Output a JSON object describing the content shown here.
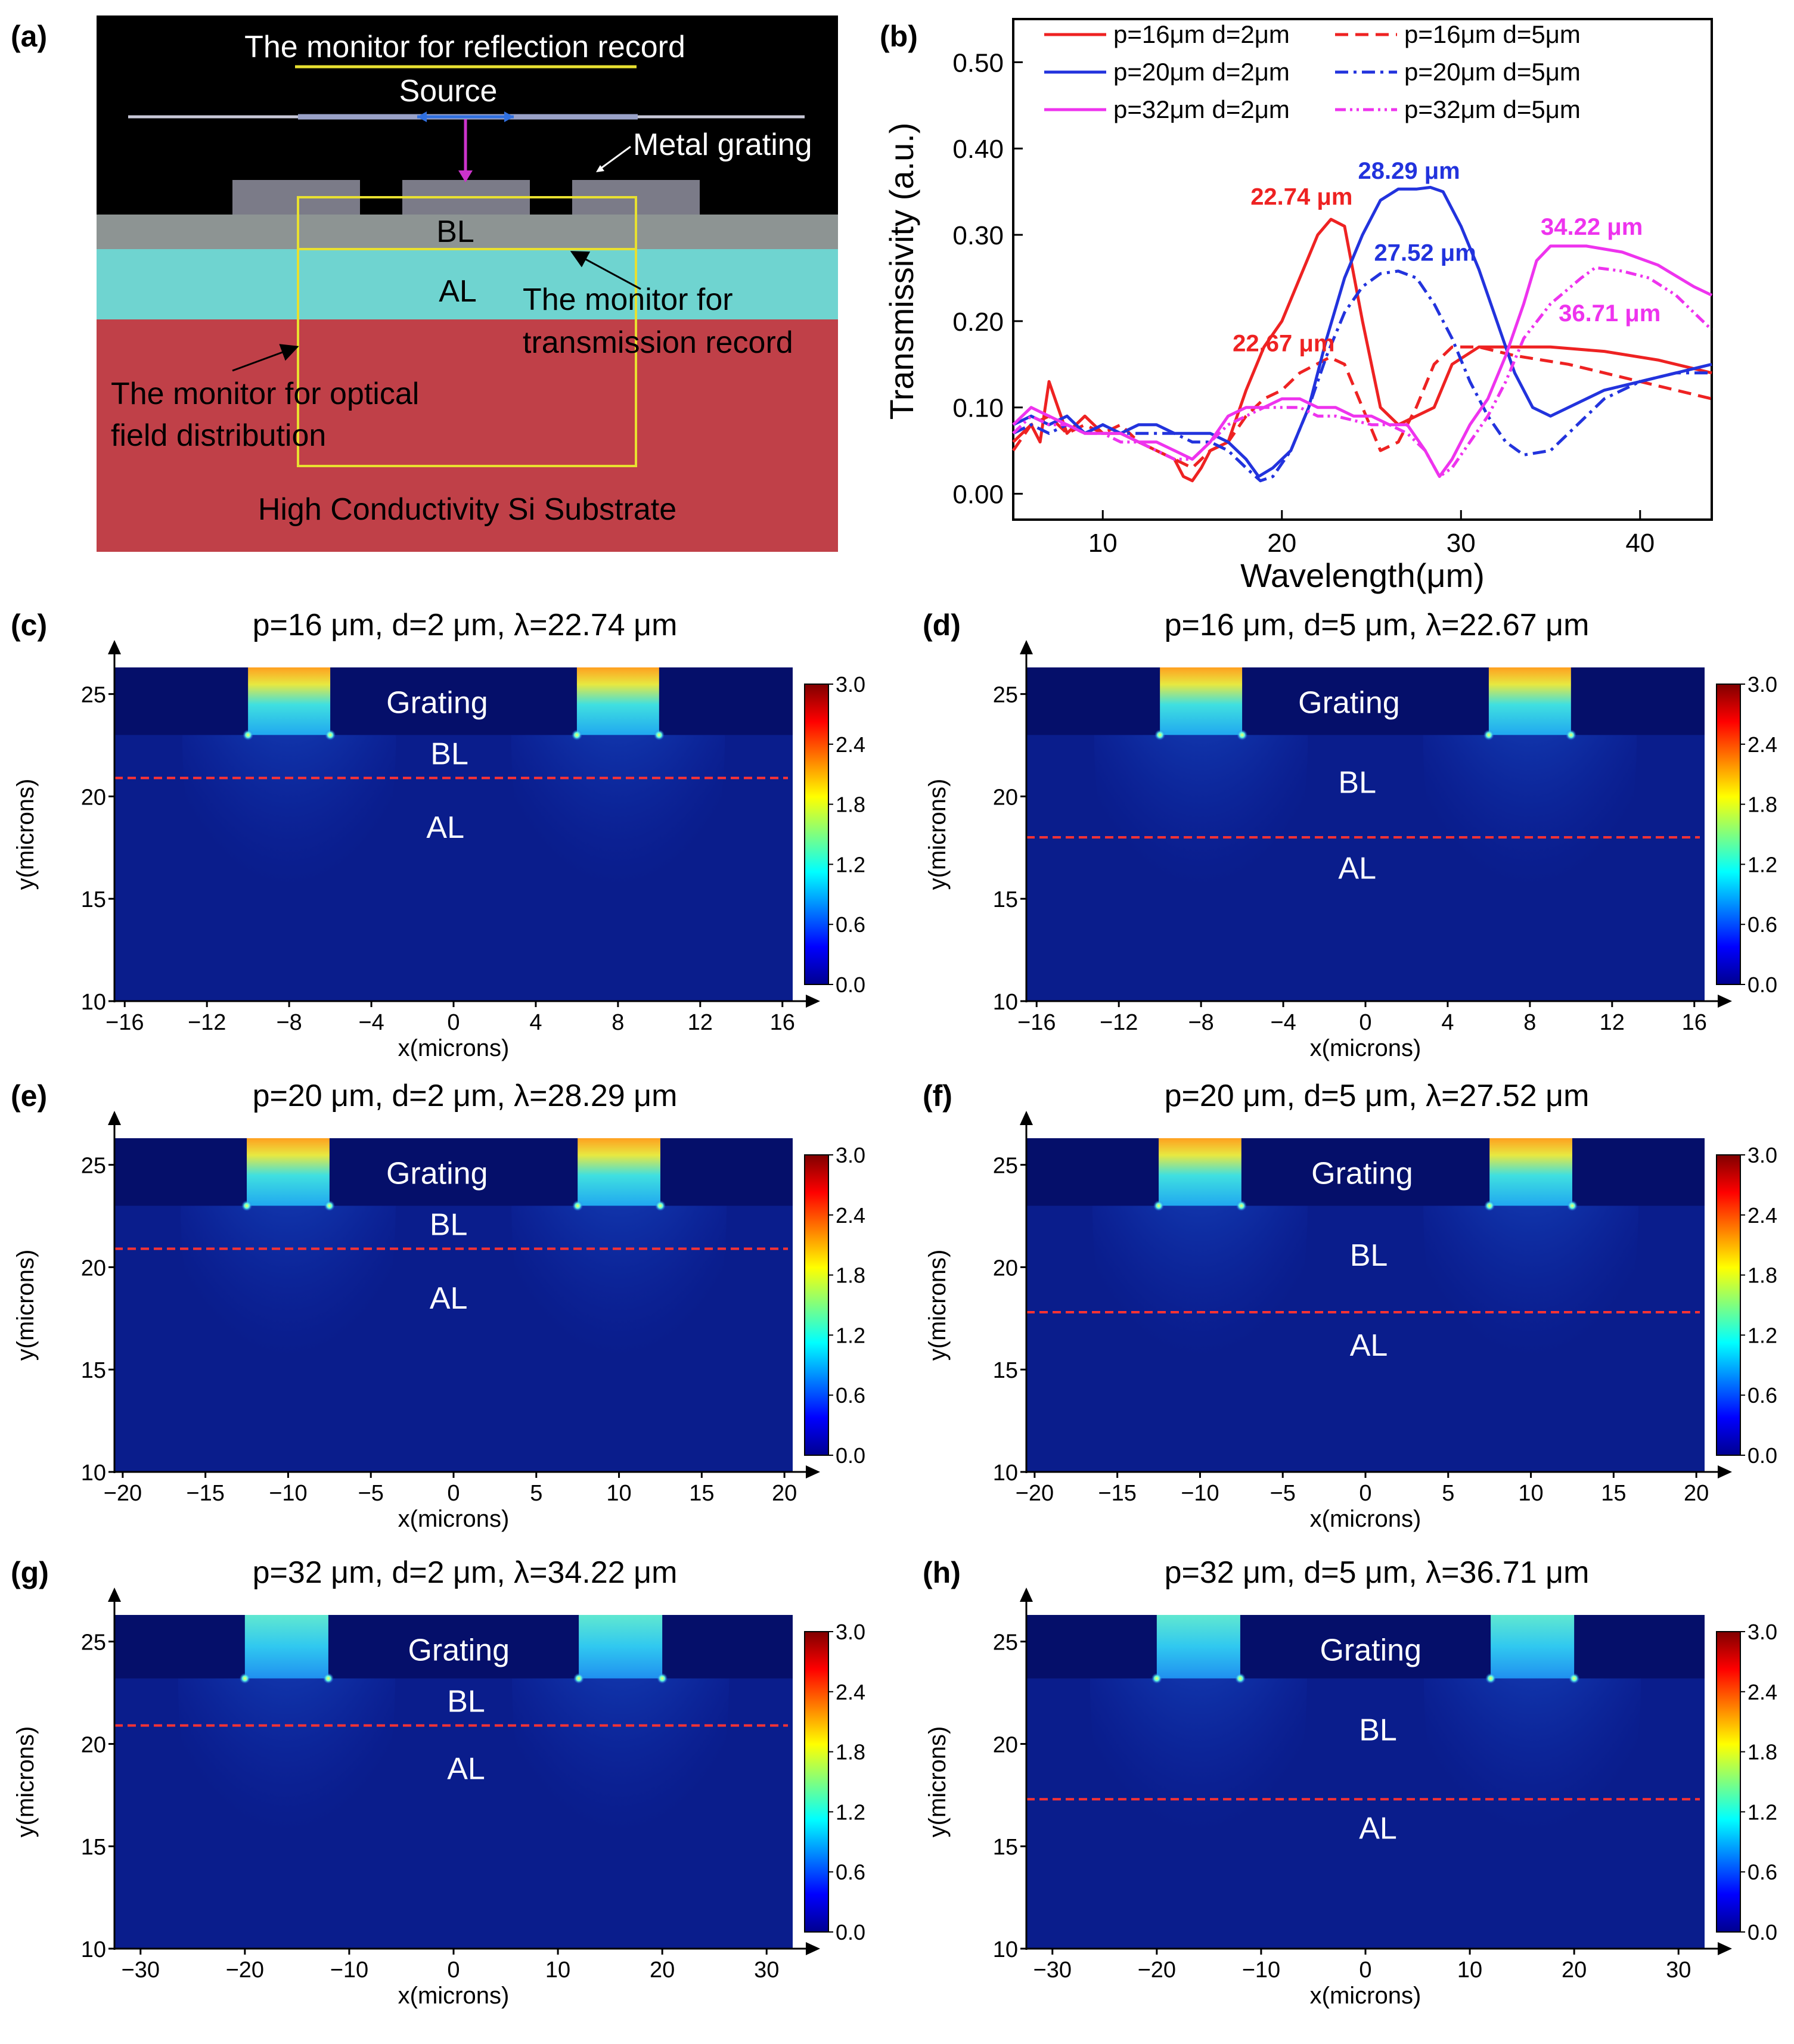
{
  "colors": {
    "red": "#ee2222",
    "blue": "#2233dd",
    "magenta": "#ee33ee",
    "black": "#000000",
    "gray_layer": "#8d9493",
    "teal_layer": "#6fd4d0",
    "substrate": "#c04048",
    "grating_block": "#7b7b88",
    "monitor_yellow": "#e8e030",
    "dash_red": "#ff3333",
    "field_dark": "#0a1d8c"
  },
  "panel_a": {
    "label": "(a)",
    "reflection_monitor": "The monitor for reflection record",
    "source": "Source",
    "metal_grating": "Metal grating",
    "bl": "BL",
    "al": "AL",
    "transmission_monitor_line1": "The monitor for",
    "transmission_monitor_line2": "transmission record",
    "optical_monitor_line1": "The monitor for optical",
    "optical_monitor_line2": "field distribution",
    "substrate": "High Conductivity Si Substrate"
  },
  "chart_data": [
    {
      "type": "line",
      "panel": "(b)",
      "title": "",
      "xlabel": "Wavelength(μm)",
      "ylabel": "Transmissivity (a.u.)",
      "xlim": [
        5,
        44
      ],
      "ylim": [
        -0.03,
        0.55
      ],
      "x_ticks": [
        "10",
        "20",
        "30",
        "40"
      ],
      "x_tick_values": [
        10,
        20,
        30,
        40
      ],
      "y_ticks": [
        "0.00",
        "0.10",
        "0.20",
        "0.30",
        "0.40",
        "0.50"
      ],
      "y_tick_values": [
        0,
        0.1,
        0.2,
        0.3,
        0.4,
        0.5
      ],
      "legend_placement": "top",
      "series": [
        {
          "name": "p=16μm d=2μm",
          "color": "#ee2222",
          "dash": "solid",
          "x": [
            5,
            6,
            6.5,
            7,
            7.5,
            8,
            9,
            10,
            11,
            12,
            13,
            14,
            14.5,
            15,
            15.5,
            16,
            17,
            18,
            19,
            20,
            21,
            22,
            22.74,
            23.5,
            24.5,
            25.5,
            26.5,
            27.5,
            28.5,
            29.5,
            31,
            33,
            35,
            38,
            41,
            44
          ],
          "y": [
            0.06,
            0.08,
            0.06,
            0.13,
            0.1,
            0.07,
            0.09,
            0.07,
            0.07,
            0.06,
            0.05,
            0.04,
            0.02,
            0.015,
            0.03,
            0.05,
            0.06,
            0.12,
            0.17,
            0.2,
            0.25,
            0.3,
            0.318,
            0.31,
            0.2,
            0.1,
            0.08,
            0.09,
            0.1,
            0.15,
            0.17,
            0.17,
            0.17,
            0.165,
            0.155,
            0.14
          ]
        },
        {
          "name": "p=16μm d=5μm",
          "color": "#ee2222",
          "dash": "dash",
          "x": [
            5,
            6,
            7,
            8,
            9,
            10,
            11,
            12,
            13,
            14,
            15,
            16,
            17,
            18,
            19,
            20,
            21,
            22.67,
            23.5,
            24.5,
            25.5,
            26.5,
            27.5,
            28.5,
            29.5,
            31,
            33,
            36,
            40,
            44
          ],
          "y": [
            0.05,
            0.08,
            0.09,
            0.07,
            0.08,
            0.07,
            0.08,
            0.06,
            0.05,
            0.04,
            0.03,
            0.05,
            0.06,
            0.09,
            0.11,
            0.12,
            0.14,
            0.158,
            0.15,
            0.1,
            0.05,
            0.06,
            0.1,
            0.15,
            0.17,
            0.17,
            0.16,
            0.15,
            0.13,
            0.11
          ]
        },
        {
          "name": "p=20μm d=2μm",
          "color": "#2233dd",
          "dash": "solid",
          "x": [
            5,
            6,
            7,
            8,
            9,
            10,
            11,
            12,
            13,
            14,
            15,
            16,
            17,
            18,
            18.7,
            19.5,
            20.5,
            21.5,
            22.5,
            23.5,
            24.5,
            25.5,
            26.5,
            27.5,
            28.29,
            29,
            30,
            31,
            32,
            33,
            34,
            35,
            36,
            38,
            40,
            42,
            44
          ],
          "y": [
            0.08,
            0.09,
            0.08,
            0.09,
            0.07,
            0.08,
            0.07,
            0.08,
            0.08,
            0.07,
            0.07,
            0.07,
            0.06,
            0.04,
            0.02,
            0.03,
            0.05,
            0.1,
            0.18,
            0.25,
            0.3,
            0.34,
            0.353,
            0.353,
            0.355,
            0.35,
            0.31,
            0.26,
            0.2,
            0.14,
            0.1,
            0.09,
            0.1,
            0.12,
            0.13,
            0.14,
            0.15
          ]
        },
        {
          "name": "p=20μm d=5μm",
          "color": "#2233dd",
          "dash": "dashdot",
          "x": [
            5,
            6,
            7,
            8,
            9,
            10,
            11,
            12,
            13,
            14,
            15,
            16,
            17,
            18,
            18.8,
            19.5,
            20.5,
            21.5,
            22.5,
            23.5,
            24.5,
            25.5,
            26.5,
            27.52,
            28.5,
            29.5,
            30.5,
            31.5,
            32.5,
            33.5,
            35,
            36,
            38,
            40,
            42,
            44
          ],
          "y": [
            0.07,
            0.08,
            0.07,
            0.08,
            0.07,
            0.08,
            0.07,
            0.07,
            0.07,
            0.07,
            0.06,
            0.06,
            0.05,
            0.03,
            0.015,
            0.02,
            0.05,
            0.1,
            0.16,
            0.21,
            0.24,
            0.255,
            0.258,
            0.25,
            0.22,
            0.18,
            0.13,
            0.09,
            0.06,
            0.045,
            0.05,
            0.07,
            0.11,
            0.13,
            0.14,
            0.14
          ]
        },
        {
          "name": "p=32μm d=2μm",
          "color": "#ee33ee",
          "dash": "solid",
          "x": [
            5,
            6,
            7,
            8,
            9,
            10,
            11,
            12,
            13,
            14,
            15,
            16,
            17,
            18,
            19,
            20,
            21,
            22,
            23,
            24,
            25,
            26,
            27,
            28,
            28.8,
            29.5,
            30.5,
            31.5,
            32.5,
            33.5,
            34.22,
            35,
            37,
            39,
            41,
            43,
            44
          ],
          "y": [
            0.08,
            0.1,
            0.09,
            0.08,
            0.07,
            0.07,
            0.07,
            0.06,
            0.06,
            0.05,
            0.04,
            0.06,
            0.09,
            0.1,
            0.1,
            0.11,
            0.11,
            0.1,
            0.1,
            0.09,
            0.09,
            0.08,
            0.08,
            0.05,
            0.02,
            0.04,
            0.08,
            0.11,
            0.16,
            0.22,
            0.27,
            0.287,
            0.287,
            0.28,
            0.265,
            0.24,
            0.23
          ]
        },
        {
          "name": "p=32μm d=5μm",
          "color": "#ee33ee",
          "dash": "dashdotdot",
          "x": [
            5,
            6,
            7,
            8,
            9,
            10,
            11,
            12,
            13,
            14,
            15,
            16,
            17,
            18,
            19,
            20,
            21,
            22,
            23,
            24,
            25,
            26,
            27,
            28,
            28.8,
            29.5,
            30.5,
            31.5,
            32.5,
            33.5,
            35,
            36.71,
            37.5,
            39,
            40.5,
            42,
            43,
            44
          ],
          "y": [
            0.07,
            0.09,
            0.08,
            0.08,
            0.07,
            0.07,
            0.06,
            0.06,
            0.05,
            0.04,
            0.04,
            0.06,
            0.08,
            0.09,
            0.1,
            0.1,
            0.1,
            0.09,
            0.09,
            0.085,
            0.08,
            0.08,
            0.07,
            0.05,
            0.02,
            0.03,
            0.06,
            0.09,
            0.13,
            0.18,
            0.22,
            0.25,
            0.262,
            0.258,
            0.25,
            0.23,
            0.21,
            0.19
          ]
        }
      ],
      "annotations": [
        {
          "text": "22.74 μm",
          "color": "#ee2222",
          "x": 21.1,
          "y": 0.335
        },
        {
          "text": "28.29 μm",
          "color": "#2233dd",
          "x": 27.1,
          "y": 0.365
        },
        {
          "text": "27.52 μm",
          "color": "#2233dd",
          "x": 28.0,
          "y": 0.27
        },
        {
          "text": "22.67 μm",
          "color": "#ee2222",
          "x": 20.1,
          "y": 0.165
        },
        {
          "text": "34.22 μm",
          "color": "#ee33ee",
          "x": 37.3,
          "y": 0.3
        },
        {
          "text": "36.71 μm",
          "color": "#ee33ee",
          "x": 38.3,
          "y": 0.2
        }
      ]
    },
    {
      "type": "heatmap",
      "panel": "(c)",
      "title": "p=16 μm, d=2 μm, λ=22.74 μm",
      "xlabel": "x(microns)",
      "ylabel": "y(microns)",
      "xlim": [
        -16.5,
        16.5
      ],
      "ylim": [
        10,
        26.3
      ],
      "x_ticks": [
        "−16",
        "−12",
        "−8",
        "−4",
        "0",
        "4",
        "8",
        "12",
        "16"
      ],
      "x_tick_values": [
        -16,
        -12,
        -8,
        -4,
        0,
        4,
        8,
        12,
        16
      ],
      "y_ticks": [
        "10",
        "15",
        "20",
        "25"
      ],
      "y_tick_values": [
        10,
        15,
        20,
        25
      ],
      "colorbar_ticks": [
        "3.0",
        "2.4",
        "1.8",
        "1.2",
        "0.6",
        "0.0"
      ],
      "colorbar_range": [
        0,
        3
      ],
      "grating_bottom": 23,
      "grating_top": 26.3,
      "slits": [
        [
          -10,
          -6
        ],
        [
          6,
          10
        ]
      ],
      "dash_y": 20.9,
      "tip_intensity": 2.4,
      "labels": {
        "grating": "Grating",
        "bl": "BL",
        "al": "AL"
      },
      "label_positions": {
        "grating": [
          -0.8,
          24.6
        ],
        "bl": [
          -0.2,
          22.1
        ],
        "al": [
          -0.4,
          18.5
        ]
      }
    },
    {
      "type": "heatmap",
      "panel": "(d)",
      "title": "p=16 μm, d=5 μm, λ=22.67 μm",
      "xlabel": "x(microns)",
      "ylabel": "y(microns)",
      "xlim": [
        -16.5,
        16.5
      ],
      "ylim": [
        10,
        26.3
      ],
      "x_ticks": [
        "−16",
        "−12",
        "−8",
        "−4",
        "0",
        "4",
        "8",
        "12",
        "16"
      ],
      "x_tick_values": [
        -16,
        -12,
        -8,
        -4,
        0,
        4,
        8,
        12,
        16
      ],
      "y_ticks": [
        "10",
        "15",
        "20",
        "25"
      ],
      "y_tick_values": [
        10,
        15,
        20,
        25
      ],
      "colorbar_ticks": [
        "3.0",
        "2.4",
        "1.8",
        "1.2",
        "0.6",
        "0.0"
      ],
      "colorbar_range": [
        0,
        3
      ],
      "grating_bottom": 23,
      "grating_top": 26.3,
      "slits": [
        [
          -10,
          -6
        ],
        [
          6,
          10
        ]
      ],
      "dash_y": 18.0,
      "tip_intensity": 2.2,
      "labels": {
        "grating": "Grating",
        "bl": "BL",
        "al": "AL"
      },
      "label_positions": {
        "grating": [
          -0.8,
          24.6
        ],
        "bl": [
          -0.4,
          20.7
        ],
        "al": [
          -0.4,
          16.5
        ]
      }
    },
    {
      "type": "heatmap",
      "panel": "(e)",
      "title": "p=20 μm, d=2 μm, λ=28.29 μm",
      "xlabel": "x(microns)",
      "ylabel": "y(microns)",
      "xlim": [
        -20.5,
        20.5
      ],
      "ylim": [
        10,
        26.3
      ],
      "x_ticks": [
        "−20",
        "−15",
        "−10",
        "−5",
        "0",
        "5",
        "10",
        "15",
        "20"
      ],
      "x_tick_values": [
        -20,
        -15,
        -10,
        -5,
        0,
        5,
        10,
        15,
        20
      ],
      "y_ticks": [
        "10",
        "15",
        "20",
        "25"
      ],
      "y_tick_values": [
        10,
        15,
        20,
        25
      ],
      "colorbar_ticks": [
        "3.0",
        "2.4",
        "1.8",
        "1.2",
        "0.6",
        "0.0"
      ],
      "colorbar_range": [
        0,
        3
      ],
      "grating_bottom": 23,
      "grating_top": 26.3,
      "slits": [
        [
          -12.5,
          -7.5
        ],
        [
          7.5,
          12.5
        ]
      ],
      "dash_y": 20.9,
      "tip_intensity": 2.3,
      "labels": {
        "grating": "Grating",
        "bl": "BL",
        "al": "AL"
      },
      "label_positions": {
        "grating": [
          -1,
          24.6
        ],
        "bl": [
          -0.3,
          22.1
        ],
        "al": [
          -0.3,
          18.5
        ]
      }
    },
    {
      "type": "heatmap",
      "panel": "(f)",
      "title": "p=20 μm, d=5 μm, λ=27.52 μm",
      "xlabel": "x(microns)",
      "ylabel": "y(microns)",
      "xlim": [
        -20.5,
        20.5
      ],
      "ylim": [
        10,
        26.3
      ],
      "x_ticks": [
        "−20",
        "−15",
        "−10",
        "−5",
        "0",
        "5",
        "10",
        "15",
        "20"
      ],
      "x_tick_values": [
        -20,
        -15,
        -10,
        -5,
        0,
        5,
        10,
        15,
        20
      ],
      "y_ticks": [
        "10",
        "15",
        "20",
        "25"
      ],
      "y_tick_values": [
        10,
        15,
        20,
        25
      ],
      "colorbar_ticks": [
        "3.0",
        "2.4",
        "1.8",
        "1.2",
        "0.6",
        "0.0"
      ],
      "colorbar_range": [
        0,
        3
      ],
      "grating_bottom": 23,
      "grating_top": 26.3,
      "slits": [
        [
          -12.5,
          -7.5
        ],
        [
          7.5,
          12.5
        ]
      ],
      "dash_y": 17.8,
      "tip_intensity": 2.2,
      "labels": {
        "grating": "Grating",
        "bl": "BL",
        "al": "AL"
      },
      "label_positions": {
        "grating": [
          -0.2,
          24.6
        ],
        "bl": [
          0.2,
          20.6
        ],
        "al": [
          0.2,
          16.2
        ]
      }
    },
    {
      "type": "heatmap",
      "panel": "(g)",
      "title": "p=32 μm, d=2 μm, λ=34.22 μm",
      "xlabel": "x(microns)",
      "ylabel": "y(microns)",
      "xlim": [
        -32.5,
        32.5
      ],
      "ylim": [
        10,
        26.3
      ],
      "x_ticks": [
        "−30",
        "−20",
        "−10",
        "0",
        "10",
        "20",
        "30"
      ],
      "x_tick_values": [
        -30,
        -20,
        -10,
        0,
        10,
        20,
        30
      ],
      "y_ticks": [
        "10",
        "15",
        "20",
        "25"
      ],
      "y_tick_values": [
        10,
        15,
        20,
        25
      ],
      "colorbar_ticks": [
        "3.0",
        "2.4",
        "1.8",
        "1.2",
        "0.6",
        "0.0"
      ],
      "colorbar_range": [
        0,
        3
      ],
      "grating_bottom": 23.2,
      "grating_top": 26.3,
      "slits": [
        [
          -20,
          -12
        ],
        [
          12,
          20
        ]
      ],
      "dash_y": 20.9,
      "tip_intensity": 1.4,
      "labels": {
        "grating": "Grating",
        "bl": "BL",
        "al": "AL"
      },
      "label_positions": {
        "grating": [
          0.5,
          24.6
        ],
        "bl": [
          1.2,
          22.1
        ],
        "al": [
          1.2,
          18.8
        ]
      }
    },
    {
      "type": "heatmap",
      "panel": "(h)",
      "title": "p=32 μm, d=5 μm, λ=36.71 μm",
      "xlabel": "x(microns)",
      "ylabel": "y(microns)",
      "xlim": [
        -32.5,
        32.5
      ],
      "ylim": [
        10,
        26.3
      ],
      "x_ticks": [
        "−30",
        "−20",
        "−10",
        "0",
        "10",
        "20",
        "30"
      ],
      "x_tick_values": [
        -30,
        -20,
        -10,
        0,
        10,
        20,
        30
      ],
      "y_ticks": [
        "10",
        "15",
        "20",
        "25"
      ],
      "y_tick_values": [
        10,
        15,
        20,
        25
      ],
      "colorbar_ticks": [
        "3.0",
        "2.4",
        "1.8",
        "1.2",
        "0.6",
        "0.0"
      ],
      "colorbar_range": [
        0,
        3
      ],
      "grating_bottom": 23.2,
      "grating_top": 26.3,
      "slits": [
        [
          -20,
          -12
        ],
        [
          12,
          20
        ]
      ],
      "dash_y": 17.3,
      "tip_intensity": 1.4,
      "labels": {
        "grating": "Grating",
        "bl": "BL",
        "al": "AL"
      },
      "label_positions": {
        "grating": [
          0.5,
          24.6
        ],
        "bl": [
          1.2,
          20.7
        ],
        "al": [
          1.2,
          15.9
        ]
      }
    }
  ]
}
